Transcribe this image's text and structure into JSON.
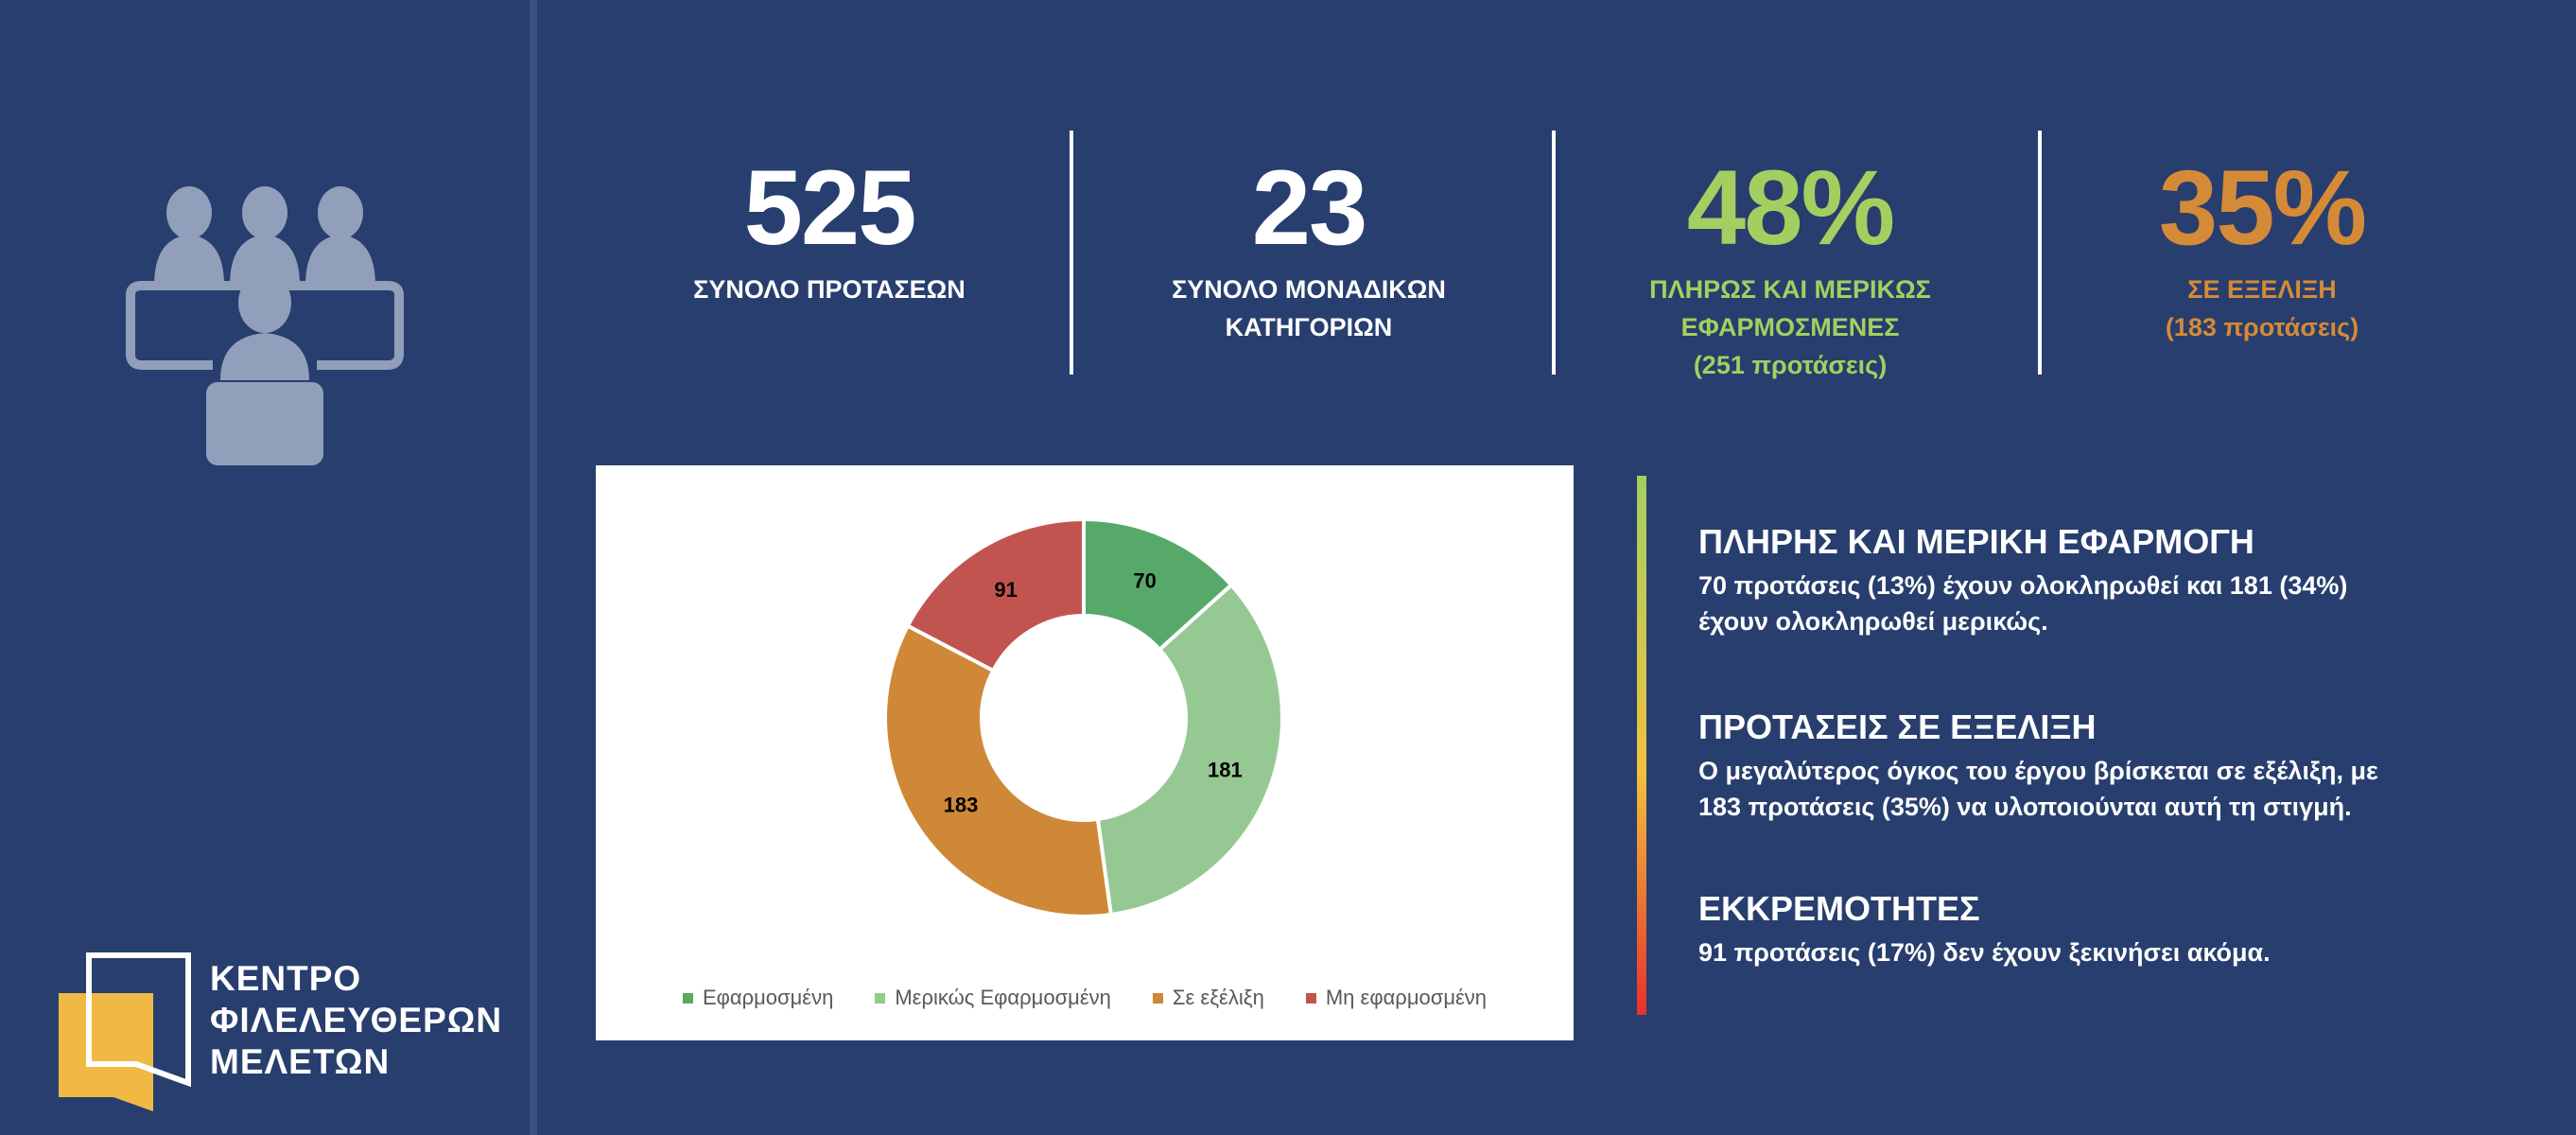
{
  "logo": {
    "lines": [
      "ΚΕΝΤΡΟ",
      "ΦΙΛΕΛΕΥΘΕΡΩΝ",
      "ΜΕΛΕΤΩΝ"
    ],
    "color": "#f0b944"
  },
  "stats": [
    {
      "value": "525",
      "label_lines": [
        "ΣΥΝΟΛΟ ΠΡΟΤΑΣΕΩΝ"
      ],
      "color": "#ffffff"
    },
    {
      "value": "23",
      "label_lines": [
        "ΣΥΝΟΛΟ ΜΟΝΑΔΙΚΩΝ",
        "ΚΑΤΗΓΟΡΙΩΝ"
      ],
      "color": "#ffffff"
    },
    {
      "value": "48%",
      "label_lines": [
        "ΠΛΗΡΩΣ ΚΑΙ ΜΕΡΙΚΩΣ",
        "ΕΦΑΡΜΟΣΜΕΝΕΣ",
        "(251 προτάσεις)"
      ],
      "color": "#a4cf60"
    },
    {
      "value": "35%",
      "label_lines": [
        "ΣΕ ΕΞΕΛΙΞΗ",
        "(183 προτάσεις)"
      ],
      "color": "#d58a37"
    }
  ],
  "chart_data": {
    "type": "pie",
    "donut": true,
    "categories": [
      "Εφαρμοσμένη",
      "Μερικώς Εφαρμοσμένη",
      "Σε εξέλιξη",
      "Μη εφαρμοσμένη"
    ],
    "values": [
      70,
      181,
      183,
      91
    ],
    "colors": [
      "#57a96a",
      "#96c893",
      "#cf8838",
      "#c25450"
    ],
    "data_labels": [
      "70",
      "181",
      "183",
      "91"
    ],
    "legend_position": "bottom"
  },
  "summary": [
    {
      "title": "ΠΛΗΡΗΣ ΚΑΙ ΜΕΡΙΚΗ ΕΦΑΡΜΟΓΗ",
      "lines": [
        "70 προτάσεις (13%) έχουν ολοκληρωθεί και 181 (34%)",
        "έχουν ολοκληρωθεί μερικώς."
      ]
    },
    {
      "title": "ΠΡΟΤΑΣΕΙΣ ΣΕ ΕΞΕΛΙΞΗ",
      "lines": [
        "Ο μεγαλύτερος όγκος του έργου βρίσκεται σε εξέλιξη, με",
        "183 προτάσεις (35%) να υλοποιούνται αυτή τη στιγμή."
      ]
    },
    {
      "title": "ΕΚΚΡΕΜΟΤΗΤΕΣ",
      "lines": [
        "91 προτάσεις (17%) δεν έχουν ξεκινήσει ακόμα."
      ]
    }
  ]
}
